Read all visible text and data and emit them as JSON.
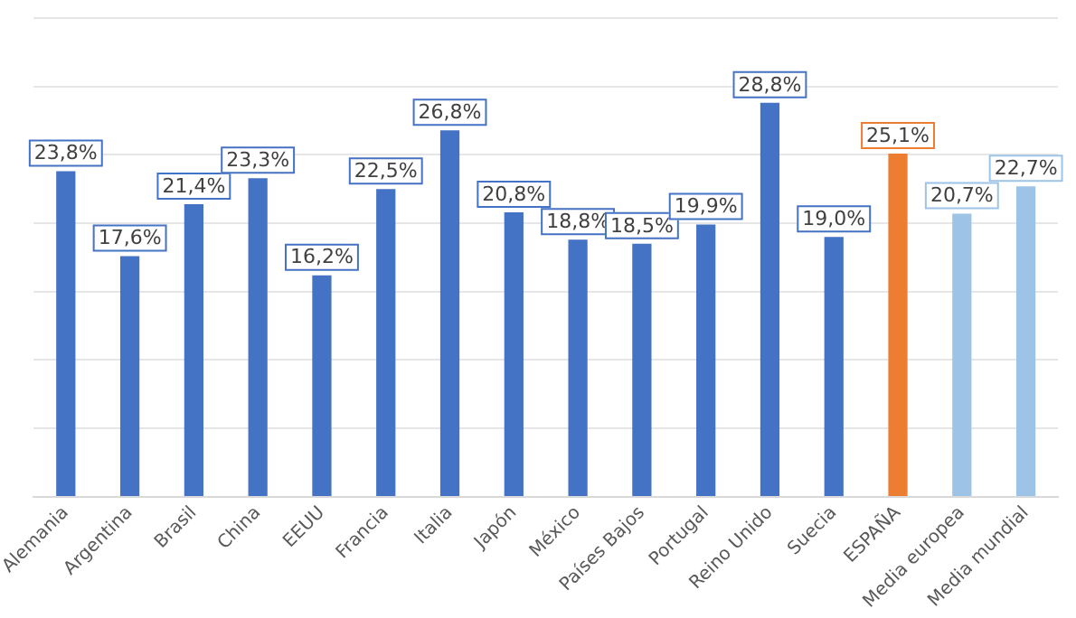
{
  "chart_data": {
    "type": "bar",
    "categories": [
      "Alemania",
      "Argentina",
      "Brasil",
      "China",
      "EEUU",
      "Francia",
      "Italia",
      "Japón",
      "México",
      "Países Bajos",
      "Portugal",
      "Reino Unido",
      "Suecia",
      "ESPAÑA",
      "Media europea",
      "Media mundial"
    ],
    "values": [
      23.8,
      17.6,
      21.4,
      23.3,
      16.2,
      22.5,
      26.8,
      20.8,
      18.8,
      18.5,
      19.9,
      28.8,
      19.0,
      25.1,
      20.7,
      22.7
    ],
    "colors": [
      "#4472c4",
      "#4472c4",
      "#4472c4",
      "#4472c4",
      "#4472c4",
      "#4472c4",
      "#4472c4",
      "#4472c4",
      "#4472c4",
      "#4472c4",
      "#4472c4",
      "#4472c4",
      "#4472c4",
      "#ed7d31",
      "#9dc3e6",
      "#9dc3e6"
    ],
    "value_labels": [
      "23,8%",
      "17,6%",
      "21,4%",
      "23,3%",
      "16,2%",
      "22,5%",
      "26,8%",
      "20,8%",
      "18,8%",
      "18,5%",
      "19,9%",
      "28,8%",
      "19,0%",
      "25,1%",
      "20,7%",
      "22,7%"
    ],
    "ylim": [
      0,
      35
    ],
    "yticks": [
      {
        "value": 0,
        "label": null
      },
      {
        "value": 5,
        "label": null
      },
      {
        "value": 10,
        "label": null
      },
      {
        "value": 15,
        "label": null
      },
      {
        "value": 20,
        "label": null
      },
      {
        "value": 25,
        "label": null
      },
      {
        "value": 30,
        "label": null
      },
      {
        "value": 35,
        "label": null
      }
    ],
    "grid": "y",
    "tick_labels": "x",
    "legend": false
  }
}
